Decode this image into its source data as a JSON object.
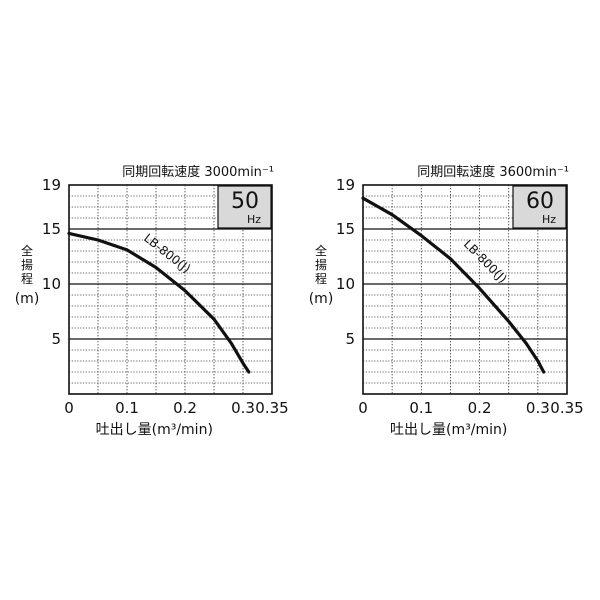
{
  "chart_data": [
    {
      "type": "line",
      "title": "同期回転速度 3000min⁻¹",
      "badge_number": "50",
      "badge_unit": "Hz",
      "ylabel_chars": [
        "全",
        "揚",
        "程"
      ],
      "ylabel_unit": "(m)",
      "xlabel": "吐出し量(m³/min)",
      "xlim": [
        0,
        0.35
      ],
      "ylim": [
        0,
        19
      ],
      "xticks": [
        "0",
        "0.1",
        "0.2",
        "0.3",
        "0.35"
      ],
      "xtick_values": [
        0,
        0.1,
        0.2,
        0.3,
        0.35
      ],
      "yticks": [
        "5",
        "10",
        "15",
        "19"
      ],
      "ytick_values": [
        5,
        10,
        15,
        19
      ],
      "grid": true,
      "series": [
        {
          "name": "LB-800(J)",
          "x": [
            0.0,
            0.05,
            0.1,
            0.15,
            0.2,
            0.25,
            0.28,
            0.3,
            0.31
          ],
          "y": [
            14.6,
            14.0,
            13.1,
            11.5,
            9.4,
            6.8,
            4.6,
            2.8,
            2.0
          ]
        }
      ],
      "series_label_at": [
        0.165,
        12.5
      ],
      "series_label_rotate": 38
    },
    {
      "type": "line",
      "title": "同期回転速度 3600min⁻¹",
      "badge_number": "60",
      "badge_unit": "Hz",
      "ylabel_chars": [
        "全",
        "揚",
        "程"
      ],
      "ylabel_unit": "(m)",
      "xlabel": "吐出し量(m³/min)",
      "xlim": [
        0,
        0.35
      ],
      "ylim": [
        0,
        19
      ],
      "xticks": [
        "0",
        "0.1",
        "0.2",
        "0.3",
        "0.35"
      ],
      "xtick_values": [
        0,
        0.1,
        0.2,
        0.3,
        0.35
      ],
      "yticks": [
        "5",
        "10",
        "15",
        "19"
      ],
      "ytick_values": [
        5,
        10,
        15,
        19
      ],
      "grid": true,
      "series": [
        {
          "name": "LB-800(J)",
          "x": [
            0.0,
            0.05,
            0.1,
            0.15,
            0.2,
            0.25,
            0.28,
            0.3,
            0.31
          ],
          "y": [
            17.8,
            16.3,
            14.4,
            12.3,
            9.6,
            6.6,
            4.6,
            3.0,
            2.0
          ]
        }
      ],
      "series_label_at": [
        0.205,
        11.8
      ],
      "series_label_rotate": 45
    }
  ]
}
